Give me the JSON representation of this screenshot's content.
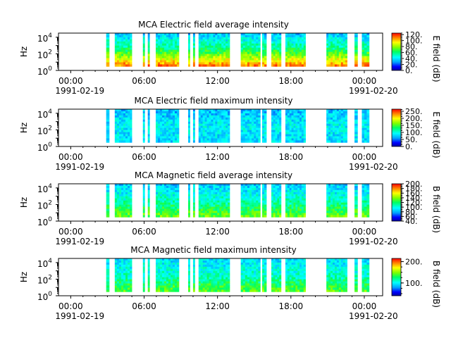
{
  "figure": {
    "background": "#ffffff"
  },
  "chart_data": [
    {
      "type": "heatmap",
      "title": "MCA  Electric field average intensity",
      "ylabel": "Hz",
      "y_scale": "log",
      "ylim": [
        1,
        31623
      ],
      "y_ticks": [
        {
          "value": 1,
          "base": "10",
          "exp": "0"
        },
        {
          "value": 100,
          "base": "10",
          "exp": "2"
        },
        {
          "value": 10000,
          "base": "10",
          "exp": "4"
        }
      ],
      "x_ticks": [
        {
          "time": "00:00",
          "date": "1991-02-19"
        },
        {
          "time": "06:00",
          "date": ""
        },
        {
          "time": "12:00",
          "date": ""
        },
        {
          "time": "18:00",
          "date": ""
        },
        {
          "time": "00:00",
          "date": "1991-02-20"
        }
      ],
      "xlim_hours": [
        -1,
        25.5
      ],
      "colorbar": {
        "label": "E field (dB)",
        "min": 0,
        "max": 125,
        "ticks": [
          "0.",
          "20.",
          "40.",
          "60.",
          "80.",
          "100.",
          "120."
        ],
        "tick_values": [
          0,
          20,
          40,
          60,
          80,
          100,
          120
        ]
      },
      "data_intervals_hours": [
        [
          2.9,
          3.15
        ],
        [
          3.6,
          5.0
        ],
        [
          5.9,
          6.05
        ],
        [
          6.3,
          6.45
        ],
        [
          6.95,
          8.85
        ],
        [
          9.6,
          9.75
        ],
        [
          10.0,
          10.15
        ],
        [
          10.45,
          13.0
        ],
        [
          13.9,
          15.5
        ],
        [
          15.65,
          16.0
        ],
        [
          16.4,
          17.2
        ],
        [
          17.55,
          19.2
        ],
        [
          20.9,
          22.6
        ],
        [
          23.2,
          23.45
        ],
        [
          23.8,
          24.4
        ]
      ],
      "intensity_profile": {
        "low_freq": 110,
        "mid_freq": 60,
        "high_freq": 35
      }
    },
    {
      "type": "heatmap",
      "title": "MCA  Electric field maximum intensity",
      "ylabel": "Hz",
      "y_scale": "log",
      "ylim": [
        1,
        31623
      ],
      "y_ticks": [
        {
          "value": 1,
          "base": "10",
          "exp": "0"
        },
        {
          "value": 100,
          "base": "10",
          "exp": "2"
        },
        {
          "value": 10000,
          "base": "10",
          "exp": "4"
        }
      ],
      "x_ticks": [
        {
          "time": "00:00",
          "date": "1991-02-19"
        },
        {
          "time": "06:00",
          "date": ""
        },
        {
          "time": "12:00",
          "date": ""
        },
        {
          "time": "18:00",
          "date": ""
        },
        {
          "time": "00:00",
          "date": "1991-02-20"
        }
      ],
      "xlim_hours": [
        -1,
        25.5
      ],
      "colorbar": {
        "label": "E field (dB)",
        "min": 0,
        "max": 265,
        "ticks": [
          "0.",
          "50.",
          "100.",
          "150.",
          "200.",
          "250."
        ],
        "tick_values": [
          0,
          50,
          100,
          150,
          200,
          250
        ]
      },
      "data_intervals_hours": [
        [
          2.9,
          3.15
        ],
        [
          3.6,
          5.0
        ],
        [
          5.9,
          6.05
        ],
        [
          6.3,
          6.45
        ],
        [
          6.95,
          8.85
        ],
        [
          9.6,
          9.75
        ],
        [
          10.0,
          10.15
        ],
        [
          10.45,
          13.0
        ],
        [
          13.9,
          15.5
        ],
        [
          15.65,
          16.0
        ],
        [
          16.4,
          17.2
        ],
        [
          17.55,
          19.2
        ],
        [
          20.9,
          22.6
        ],
        [
          23.2,
          23.45
        ],
        [
          23.8,
          24.4
        ]
      ],
      "intensity_profile": {
        "low_freq": 80,
        "mid_freq": 90,
        "high_freq": 70
      }
    },
    {
      "type": "heatmap",
      "title": "MCA  Magnetic field average intensity",
      "ylabel": "Hz",
      "y_scale": "log",
      "ylim": [
        1,
        31623
      ],
      "y_ticks": [
        {
          "value": 1,
          "base": "10",
          "exp": "0"
        },
        {
          "value": 100,
          "base": "10",
          "exp": "2"
        },
        {
          "value": 10000,
          "base": "10",
          "exp": "4"
        }
      ],
      "x_ticks": [
        {
          "time": "00:00",
          "date": "1991-02-19"
        },
        {
          "time": "06:00",
          "date": ""
        },
        {
          "time": "12:00",
          "date": ""
        },
        {
          "time": "18:00",
          "date": ""
        },
        {
          "time": "00:00",
          "date": "1991-02-20"
        }
      ],
      "xlim_hours": [
        -1,
        25.5
      ],
      "colorbar": {
        "label": "B field (dB)",
        "min": 40,
        "max": 200,
        "ticks": [
          "40.",
          "60.",
          "80.",
          "100.",
          "120.",
          "140.",
          "160.",
          "180.",
          "200."
        ],
        "tick_values": [
          40,
          60,
          80,
          100,
          120,
          140,
          160,
          180,
          200
        ]
      },
      "data_intervals_hours": [
        [
          2.9,
          3.15
        ],
        [
          3.6,
          5.0
        ],
        [
          5.9,
          6.05
        ],
        [
          6.3,
          6.45
        ],
        [
          6.95,
          8.85
        ],
        [
          9.6,
          9.75
        ],
        [
          10.0,
          10.15
        ],
        [
          10.45,
          13.0
        ],
        [
          13.9,
          15.5
        ],
        [
          15.65,
          16.0
        ],
        [
          16.4,
          17.2
        ],
        [
          17.55,
          19.2
        ],
        [
          20.9,
          22.6
        ],
        [
          23.2,
          23.45
        ],
        [
          23.8,
          24.4
        ]
      ],
      "intensity_profile": {
        "low_freq": 135,
        "mid_freq": 105,
        "high_freq": 85
      }
    },
    {
      "type": "heatmap",
      "title": "MCA  Magnetic field maximum intensity",
      "ylabel": "Hz",
      "y_scale": "log",
      "ylim": [
        1,
        31623
      ],
      "y_ticks": [
        {
          "value": 1,
          "base": "10",
          "exp": "0"
        },
        {
          "value": 100,
          "base": "10",
          "exp": "2"
        },
        {
          "value": 10000,
          "base": "10",
          "exp": "4"
        }
      ],
      "x_ticks": [
        {
          "time": "00:00",
          "date": "1991-02-19"
        },
        {
          "time": "06:00",
          "date": ""
        },
        {
          "time": "12:00",
          "date": ""
        },
        {
          "time": "18:00",
          "date": ""
        },
        {
          "time": "00:00",
          "date": "1991-02-20"
        }
      ],
      "xlim_hours": [
        -1,
        25.5
      ],
      "colorbar": {
        "label": "B field (dB)",
        "min": 40,
        "max": 215,
        "ticks": [
          "100.",
          "200."
        ],
        "tick_values": [
          100,
          200
        ]
      },
      "data_intervals_hours": [
        [
          2.9,
          3.15
        ],
        [
          3.6,
          5.0
        ],
        [
          5.9,
          6.05
        ],
        [
          6.3,
          6.45
        ],
        [
          6.95,
          8.85
        ],
        [
          9.6,
          9.75
        ],
        [
          10.0,
          10.15
        ],
        [
          10.45,
          13.0
        ],
        [
          13.9,
          15.5
        ],
        [
          15.65,
          16.0
        ],
        [
          16.4,
          17.2
        ],
        [
          17.55,
          19.2
        ],
        [
          20.9,
          22.6
        ],
        [
          23.2,
          23.45
        ],
        [
          23.8,
          24.4
        ]
      ],
      "intensity_profile": {
        "low_freq": 140,
        "mid_freq": 110,
        "high_freq": 95
      }
    }
  ]
}
